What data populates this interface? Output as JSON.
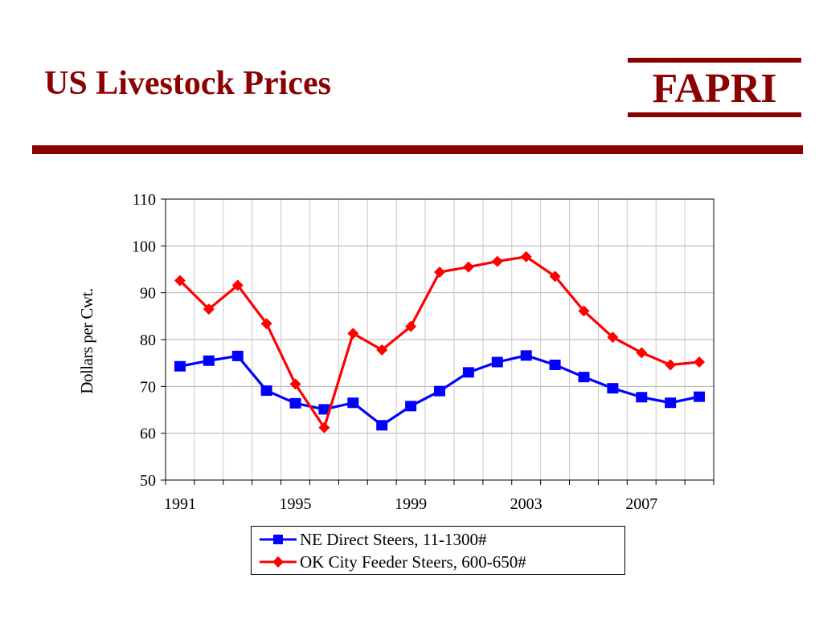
{
  "slide": {
    "title": "US Livestock Prices",
    "logo_text": "FAPRI",
    "accent_color": "#8b0000"
  },
  "chart_data": {
    "type": "line",
    "title": "",
    "xlabel": "",
    "ylabel": "Dollars per Cwt.",
    "ylim": [
      50,
      110
    ],
    "yticks": [
      50,
      60,
      70,
      80,
      90,
      100,
      110
    ],
    "xlim": [
      1991,
      2009
    ],
    "xtick_labels": [
      "1991",
      "1995",
      "1999",
      "2003",
      "2007"
    ],
    "grid": true,
    "legend_position": "bottom",
    "x": [
      1991,
      1992,
      1993,
      1994,
      1995,
      1996,
      1997,
      1998,
      1999,
      2000,
      2001,
      2002,
      2003,
      2004,
      2005,
      2006,
      2007,
      2008,
      2009
    ],
    "series": [
      {
        "name": "NE Direct Steers, 11-1300#",
        "color": "#0000ff",
        "marker": "square",
        "values": [
          74.3,
          75.5,
          76.5,
          69.1,
          66.4,
          65.1,
          66.5,
          61.7,
          65.8,
          69.0,
          73.0,
          75.2,
          76.6,
          74.6,
          72.0,
          69.6,
          67.7,
          66.5,
          67.8
        ]
      },
      {
        "name": "OK City Feeder Steers, 600-650#",
        "color": "#ff0000",
        "marker": "diamond",
        "values": [
          92.6,
          86.5,
          91.6,
          83.4,
          70.5,
          61.2,
          81.3,
          77.8,
          82.8,
          94.4,
          95.5,
          96.7,
          97.7,
          93.5,
          86.1,
          80.5,
          77.2,
          74.6,
          75.2
        ]
      }
    ]
  }
}
